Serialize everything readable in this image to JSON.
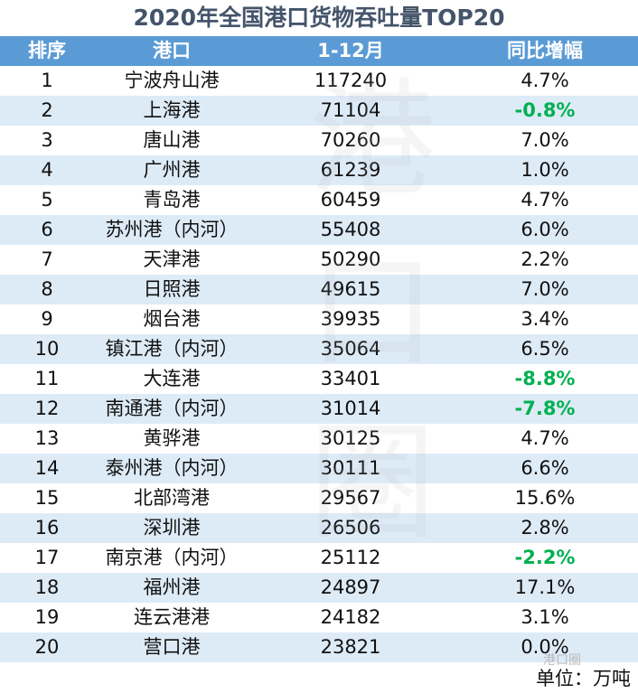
{
  "title": "2020年全国港口货物吞吐量TOP20",
  "headers": [
    "排序",
    "港口",
    "1-12月",
    "同比增幅"
  ],
  "rows": [
    [
      "1",
      "宁波舟山港",
      "117240",
      "4.7%"
    ],
    [
      "2",
      "上海港",
      "71104",
      "-0.8%"
    ],
    [
      "3",
      "唐山港",
      "70260",
      "7.0%"
    ],
    [
      "4",
      "广州港",
      "61239",
      "1.0%"
    ],
    [
      "5",
      "青岛港",
      "60459",
      "4.7%"
    ],
    [
      "6",
      "苏州港（内河）",
      "55408",
      "6.0%"
    ],
    [
      "7",
      "天津港",
      "50290",
      "2.2%"
    ],
    [
      "8",
      "日照港",
      "49615",
      "7.0%"
    ],
    [
      "9",
      "烟台港",
      "39935",
      "3.4%"
    ],
    [
      "10",
      "镇江港（内河）",
      "35064",
      "6.5%"
    ],
    [
      "11",
      "大连港",
      "33401",
      "-8.8%"
    ],
    [
      "12",
      "南通港（内河）",
      "31014",
      "-7.8%"
    ],
    [
      "13",
      "黄骅港",
      "30125",
      "4.7%"
    ],
    [
      "14",
      "泰州港（内河）",
      "30111",
      "6.6%"
    ],
    [
      "15",
      "北部湾港",
      "29567",
      "15.6%"
    ],
    [
      "16",
      "深圳港",
      "26506",
      "2.8%"
    ],
    [
      "17",
      "南京港（内河）",
      "25112",
      "-2.2%"
    ],
    [
      "18",
      "福州港",
      "24897",
      "17.1%"
    ],
    [
      "19",
      "连云港港",
      "24182",
      "3.1%"
    ],
    [
      "20",
      "营口港",
      "23821",
      "0.0%"
    ]
  ],
  "unit": "单位：万吨",
  "watermark": "港口圈",
  "logo_text": "港口圈",
  "colors": {
    "header": "#5b9bd5",
    "row_alt": "#ddebf7",
    "negative": "#00b050",
    "title": "#44546a"
  }
}
